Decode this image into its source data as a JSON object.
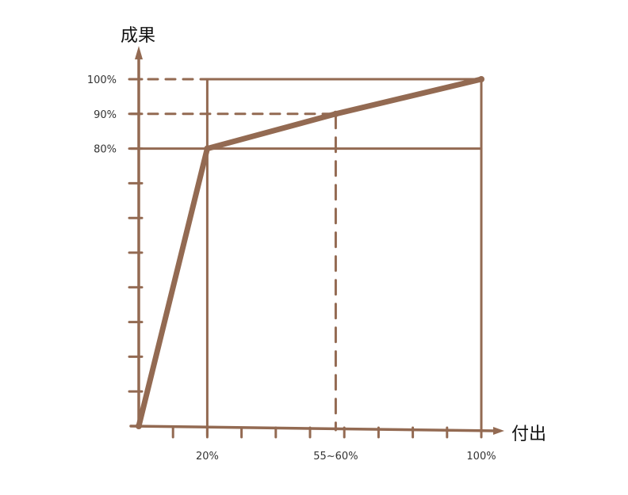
{
  "chart_data": {
    "type": "line",
    "title": "",
    "xlabel": "付出",
    "ylabel": "成果",
    "xlim": [
      0,
      100
    ],
    "ylim": [
      0,
      100
    ],
    "x_tick_labels": [
      {
        "value": 20,
        "label": "20%"
      },
      {
        "value": 57.5,
        "label": "55~60%"
      },
      {
        "value": 100,
        "label": "100%"
      }
    ],
    "y_tick_labels": [
      {
        "value": 80,
        "label": "80%"
      },
      {
        "value": 90,
        "label": "90%"
      },
      {
        "value": 100,
        "label": "100%"
      }
    ],
    "series": [
      {
        "x": [
          0,
          20,
          57.5,
          100
        ],
        "y": [
          0,
          80,
          90,
          100
        ]
      }
    ],
    "reference_lines": {
      "solid_vertical": [
        20,
        100
      ],
      "dashed_vertical": [
        57.5,
        100
      ],
      "solid_horizontal": [
        80,
        100
      ],
      "dashed_horizontal": [
        90,
        100
      ]
    },
    "grid": false,
    "color": "#936a52"
  }
}
